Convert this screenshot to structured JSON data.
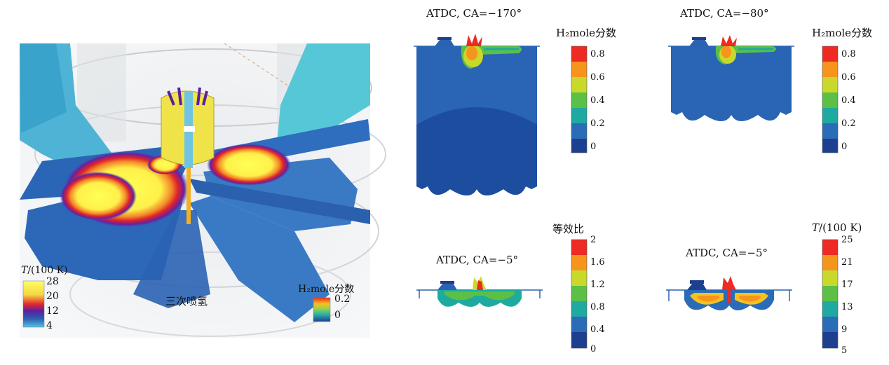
{
  "left_panel": {
    "temp_legend": {
      "title_var": "T",
      "title_unit": "/(100 K)",
      "ticks": [
        "28",
        "20",
        "12",
        "4"
      ]
    },
    "caption": "三次喷氢",
    "h2_legend": {
      "title": "H₂mole分数",
      "ticks": [
        "0.2",
        "0"
      ]
    }
  },
  "panels": [
    {
      "id": "top-left",
      "title": "ATDC, CA=−170°",
      "colorbar_title": "H₂mole分数",
      "ticks": [
        "0.8",
        "0.6",
        "0.4",
        "0.2",
        "0"
      ]
    },
    {
      "id": "top-right",
      "title": "ATDC, CA=−80°",
      "colorbar_title": "H₂mole分数",
      "ticks": [
        "0.8",
        "0.6",
        "0.4",
        "0.2",
        "0"
      ]
    },
    {
      "id": "bottom-left",
      "title": "ATDC, CA=−5°",
      "colorbar_title": "等效比",
      "ticks": [
        "2",
        "1.6",
        "1.2",
        "0.8",
        "0.4",
        "0"
      ]
    },
    {
      "id": "bottom-right",
      "title": "ATDC, CA=−5°",
      "colorbar_title_var": "T",
      "colorbar_title_unit": "/(100 K)",
      "ticks": [
        "25",
        "21",
        "17",
        "13",
        "9",
        "5"
      ]
    }
  ],
  "colors": {
    "rainbow": [
      "#ee2a22",
      "#f7941d",
      "#c8d92b",
      "#5cbf46",
      "#1eaaa0",
      "#2a6cb8",
      "#1d3f8f"
    ],
    "temp": [
      "#ffff66",
      "#e6262e",
      "#5a1fa0",
      "#2a5fb0",
      "#55c3e6"
    ]
  }
}
